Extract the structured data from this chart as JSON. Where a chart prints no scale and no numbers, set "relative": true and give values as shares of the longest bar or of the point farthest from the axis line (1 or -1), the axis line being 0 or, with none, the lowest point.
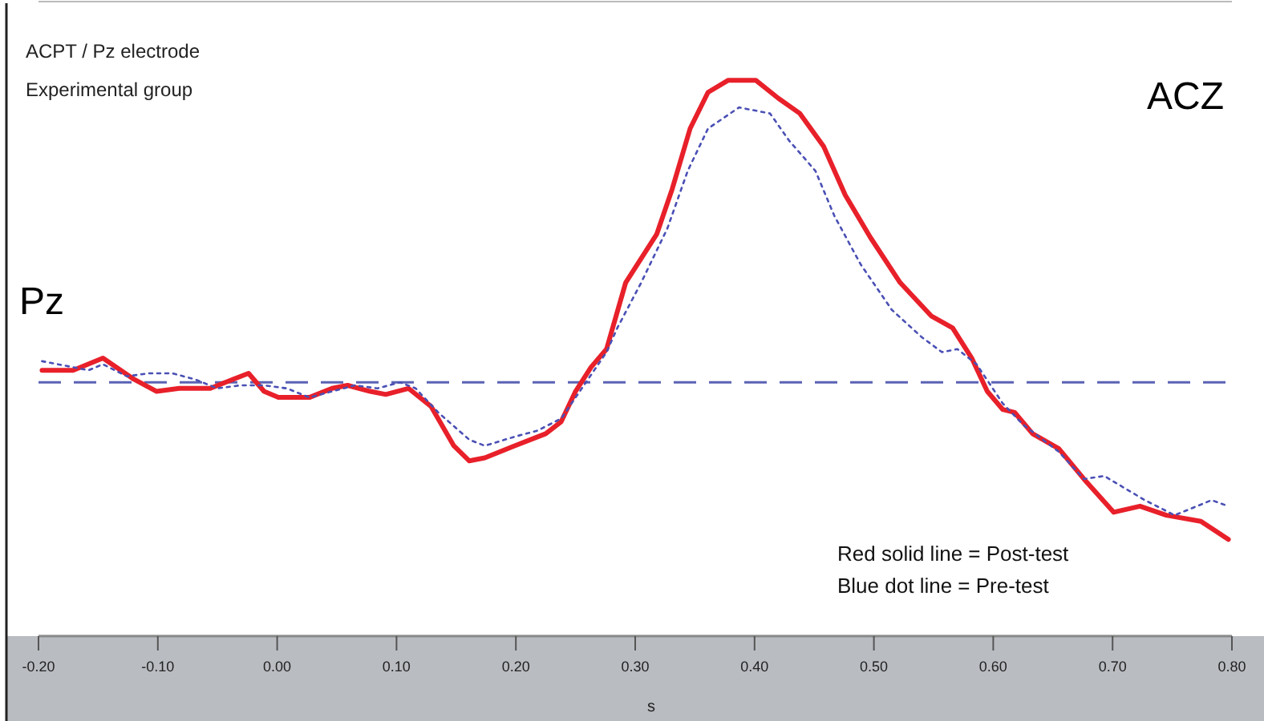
{
  "chart_data": {
    "type": "line",
    "relative": true,
    "xlabel": "s",
    "xlim": [
      -0.2,
      0.8
    ],
    "xticks": [
      {
        "value": -0.2,
        "label": "-0.20"
      },
      {
        "value": -0.1,
        "label": "-0.10"
      },
      {
        "value": 0,
        "label": "0.00"
      },
      {
        "value": 0.1,
        "label": "0.10"
      },
      {
        "value": 0.2,
        "label": "0.20"
      },
      {
        "value": 0.3,
        "label": "0.30"
      },
      {
        "value": 0.4,
        "label": "0.40"
      },
      {
        "value": 0.5,
        "label": "0.50"
      },
      {
        "value": 0.6,
        "label": "0.60"
      },
      {
        "value": 0.7,
        "label": "0.70"
      },
      {
        "value": 0.8,
        "label": "0.80"
      }
    ],
    "grid": false,
    "ref_lines": [
      {
        "axis": "y",
        "value": 0,
        "color": "#5a62b4",
        "line_style": "dashed"
      }
    ],
    "annotations": [
      "ACPT / Pz electrode",
      "Experimental group",
      "Pz",
      "ACZ",
      "Red solid line = Post-test",
      "Blue dot line = Pre-test"
    ],
    "series": [
      {
        "color": "#e8202a",
        "line_style": "solid",
        "x": [
          -0.197,
          -0.171,
          -0.146,
          -0.12,
          -0.101,
          -0.082,
          -0.056,
          -0.037,
          -0.024,
          -0.011,
          0.001,
          0.027,
          0.046,
          0.059,
          0.078,
          0.091,
          0.11,
          0.129,
          0.148,
          0.161,
          0.174,
          0.199,
          0.225,
          0.238,
          0.25,
          0.263,
          0.276,
          0.292,
          0.318,
          0.331,
          0.346,
          0.361,
          0.378,
          0.401,
          0.42,
          0.438,
          0.458,
          0.476,
          0.497,
          0.522,
          0.548,
          0.566,
          0.582,
          0.595,
          0.608,
          0.618,
          0.633,
          0.655,
          0.676,
          0.701,
          0.723,
          0.745,
          0.774,
          0.797
        ],
        "values": [
          0.04,
          0.04,
          0.08,
          0.01,
          -0.03,
          -0.02,
          -0.02,
          0.01,
          0.03,
          -0.03,
          -0.05,
          -0.05,
          -0.02,
          -0.01,
          -0.03,
          -0.04,
          -0.02,
          -0.08,
          -0.21,
          -0.26,
          -0.25,
          -0.21,
          -0.17,
          -0.13,
          -0.03,
          0.05,
          0.11,
          0.33,
          0.49,
          0.64,
          0.84,
          0.96,
          1.0,
          1.0,
          0.94,
          0.89,
          0.78,
          0.62,
          0.48,
          0.33,
          0.22,
          0.18,
          0.08,
          -0.03,
          -0.09,
          -0.1,
          -0.17,
          -0.22,
          -0.32,
          -0.43,
          -0.41,
          -0.44,
          -0.46,
          -0.52
        ]
      },
      {
        "color": "#4a50b4",
        "line_style": "dotted",
        "x": [
          -0.197,
          -0.171,
          -0.158,
          -0.146,
          -0.126,
          -0.107,
          -0.088,
          -0.069,
          -0.05,
          -0.031,
          -0.011,
          0.008,
          0.027,
          0.046,
          0.065,
          0.084,
          0.103,
          0.116,
          0.135,
          0.161,
          0.174,
          0.199,
          0.218,
          0.238,
          0.257,
          0.276,
          0.285,
          0.305,
          0.327,
          0.344,
          0.361,
          0.387,
          0.413,
          0.429,
          0.451,
          0.467,
          0.489,
          0.515,
          0.54,
          0.557,
          0.57,
          0.586,
          0.608,
          0.625,
          0.655,
          0.676,
          0.693,
          0.727,
          0.752,
          0.783,
          0.797
        ],
        "values": [
          0.07,
          0.05,
          0.04,
          0.06,
          0.02,
          0.03,
          0.03,
          0.01,
          -0.02,
          -0.01,
          -0.01,
          -0.02,
          -0.05,
          -0.03,
          -0.01,
          -0.02,
          0,
          -0.02,
          -0.1,
          -0.19,
          -0.21,
          -0.18,
          -0.16,
          -0.12,
          -0.01,
          0.1,
          0.18,
          0.33,
          0.51,
          0.7,
          0.84,
          0.91,
          0.89,
          0.8,
          0.7,
          0.55,
          0.39,
          0.24,
          0.15,
          0.1,
          0.11,
          0.06,
          -0.07,
          -0.14,
          -0.23,
          -0.32,
          -0.31,
          -0.39,
          -0.44,
          -0.39,
          -0.41
        ]
      }
    ]
  }
}
